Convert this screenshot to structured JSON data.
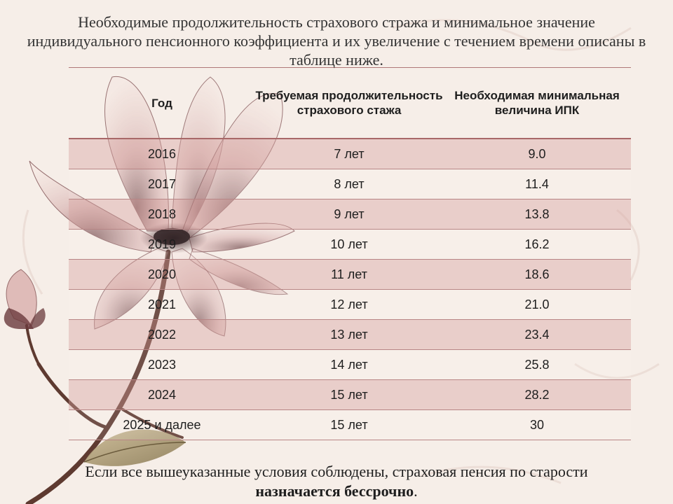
{
  "heading": "Необходимые продолжительность страхового стража и минимальное значение индивидуального пенсионного коэффициента и их увеличение с течением времени описаны в таблице ниже.",
  "table": {
    "headers": {
      "year": "Год",
      "term": "Требуемая продолжительность страхового стажа",
      "ipk": "Необходимая минимальная величина ИПК"
    },
    "rows": [
      {
        "year": "2016",
        "term": "7 лет",
        "ipk": "9.0"
      },
      {
        "year": "2017",
        "term": "8 лет",
        "ipk": "11.4"
      },
      {
        "year": "2018",
        "term": "9 лет",
        "ipk": "13.8"
      },
      {
        "year": "2019",
        "term": "10 лет",
        "ipk": "16.2"
      },
      {
        "year": "2020",
        "term": "11 лет",
        "ipk": "18.6"
      },
      {
        "year": "2021",
        "term": "12 лет",
        "ipk": "21.0"
      },
      {
        "year": "2022",
        "term": "13 лет",
        "ipk": "23.4"
      },
      {
        "year": "2023",
        "term": "14 лет",
        "ipk": "25.8"
      },
      {
        "year": "2024",
        "term": "15 лет",
        "ipk": "28.2"
      },
      {
        "year": "2025 и далее",
        "term": "15 лет",
        "ipk": "30"
      }
    ]
  },
  "footer": {
    "text": "Если все вышеуказанные условия соблюдены, страховая пенсия по старости ",
    "emphasis": "назначается бессрочно",
    "end": "."
  },
  "colors": {
    "background": "#f6eee8",
    "row_band": "#d6a2a0",
    "row_line": "#b88585",
    "petal": "#dcb3b0",
    "flower_center": "#2a1216"
  }
}
